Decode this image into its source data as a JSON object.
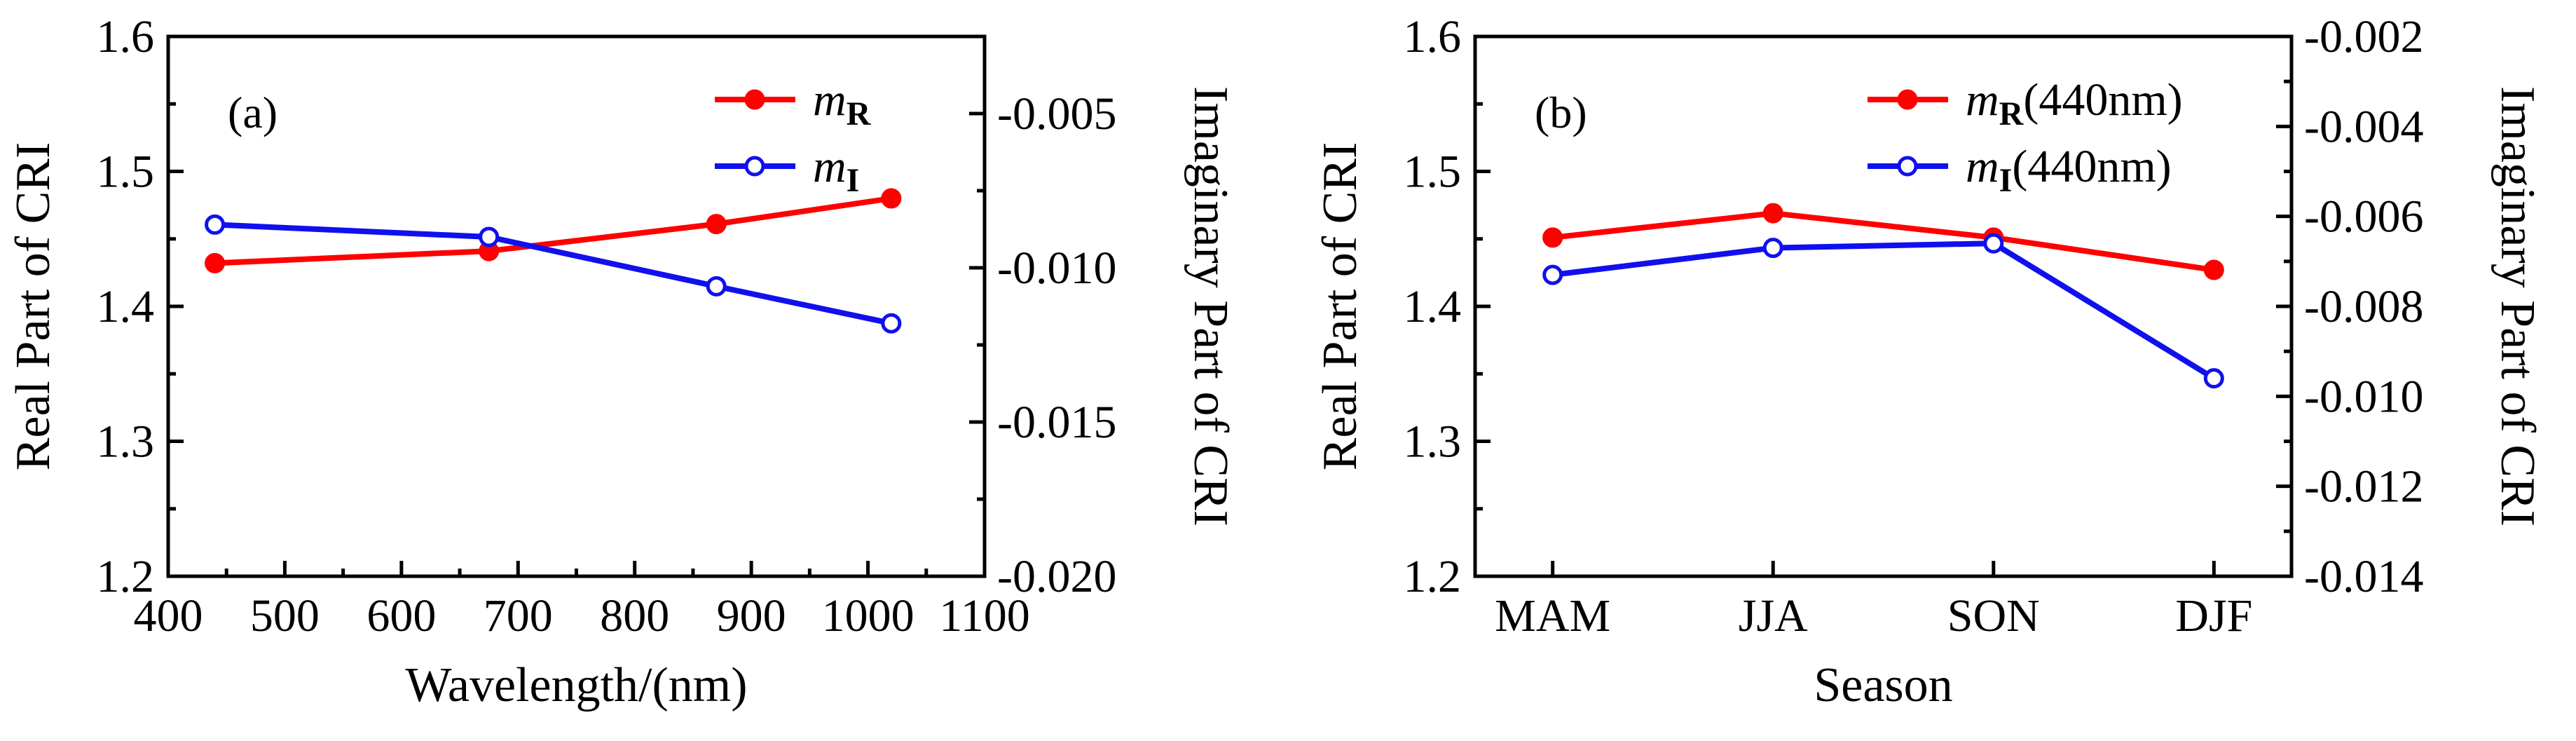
{
  "colors": {
    "red": "#ff0000",
    "blue": "#1010ee",
    "axis": "#000000"
  },
  "chart_data": [
    {
      "type": "line",
      "panel_label": "(a)",
      "xlabel": "Wavelength/(nm)",
      "ylabel": "Real Part of CRI",
      "y2label": "Imaginary Part of CRI",
      "xlim": [
        400,
        1100
      ],
      "ylim": [
        1.2,
        1.6
      ],
      "y2lim": [
        -0.02,
        -0.0025
      ],
      "xticks": [
        400,
        500,
        600,
        700,
        800,
        900,
        1000,
        1100
      ],
      "xtick_labels": [
        "400",
        "500",
        "600",
        "700",
        "800",
        "900",
        "1000",
        "1100"
      ],
      "yticks": [
        1.2,
        1.3,
        1.4,
        1.5,
        1.6
      ],
      "ytick_labels": [
        "1.2",
        "1.3",
        "1.4",
        "1.5",
        "1.6"
      ],
      "y2ticks": [
        -0.02,
        -0.015,
        -0.01,
        -0.005
      ],
      "y2tick_labels": [
        "-0.020",
        "-0.015",
        "-0.010",
        "-0.005"
      ],
      "legend_position": "top-right",
      "series": [
        {
          "name": "m_R",
          "legend_m": "m",
          "legend_sub": "R",
          "legend_suffix": "",
          "color": "#ff0000",
          "marker": "filled",
          "axis": "left",
          "x": [
            440,
            675,
            870,
            1020
          ],
          "values": [
            1.432,
            1.441,
            1.461,
            1.48
          ]
        },
        {
          "name": "m_I",
          "legend_m": "m",
          "legend_sub": "I",
          "legend_suffix": "",
          "color": "#1010ee",
          "marker": "open",
          "axis": "right",
          "x": [
            440,
            675,
            870,
            1020
          ],
          "values": [
            -0.0086,
            -0.009,
            -0.0106,
            -0.0118
          ]
        }
      ]
    },
    {
      "type": "line",
      "panel_label": "(b)",
      "xlabel": "Season",
      "ylabel": "Real Part of CRI",
      "y2label": "Imaginary Part of  CRI",
      "categories": [
        "MAM",
        "JJA",
        "SON",
        "DJF"
      ],
      "ylim": [
        1.2,
        1.6
      ],
      "y2lim": [
        -0.014,
        -0.002
      ],
      "yticks": [
        1.2,
        1.3,
        1.4,
        1.5,
        1.6
      ],
      "ytick_labels": [
        "1.2",
        "1.3",
        "1.4",
        "1.5",
        "1.6"
      ],
      "y2ticks": [
        -0.014,
        -0.012,
        -0.01,
        -0.008,
        -0.006,
        -0.004,
        -0.002
      ],
      "y2tick_labels": [
        "-0.014",
        "-0.012",
        "-0.010",
        "-0.008",
        "-0.006",
        "-0.004",
        "-0.002"
      ],
      "legend_position": "top-right",
      "series": [
        {
          "name": "m_R(440nm)",
          "legend_m": "m",
          "legend_sub": "R",
          "legend_suffix": "(440nm)",
          "color": "#ff0000",
          "marker": "filled",
          "axis": "left",
          "values": [
            1.451,
            1.469,
            1.451,
            1.427
          ]
        },
        {
          "name": "m_I(440nm)",
          "legend_m": "m",
          "legend_sub": "I",
          "legend_suffix": "(440nm)",
          "color": "#1010ee",
          "marker": "open",
          "axis": "right",
          "values": [
            -0.0073,
            -0.0067,
            -0.0066,
            -0.0096
          ]
        }
      ]
    }
  ]
}
